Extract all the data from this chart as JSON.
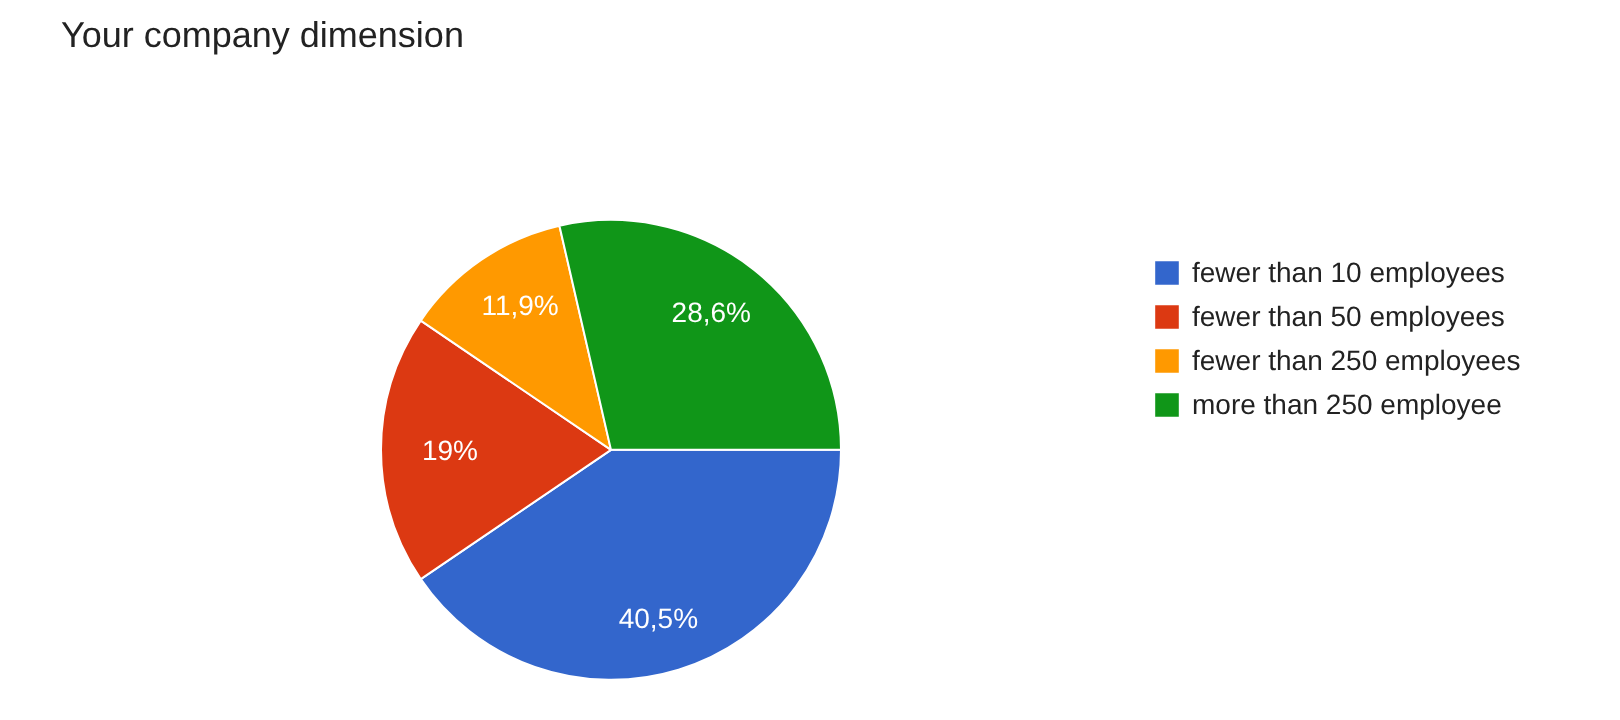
{
  "chart_data": {
    "type": "pie",
    "title": "Your company dimension",
    "categories": [
      "fewer than 10 employees",
      "fewer than 50 employees",
      "fewer than 250 employees",
      "more than 250 employee"
    ],
    "values": [
      40.5,
      19,
      11.9,
      28.6
    ],
    "colors": [
      "#3366cc",
      "#dc3912",
      "#ff9900",
      "#109618"
    ],
    "value_labels": [
      "40,5%",
      "19%",
      "11,9%",
      "28,6%"
    ],
    "legend": "right"
  }
}
